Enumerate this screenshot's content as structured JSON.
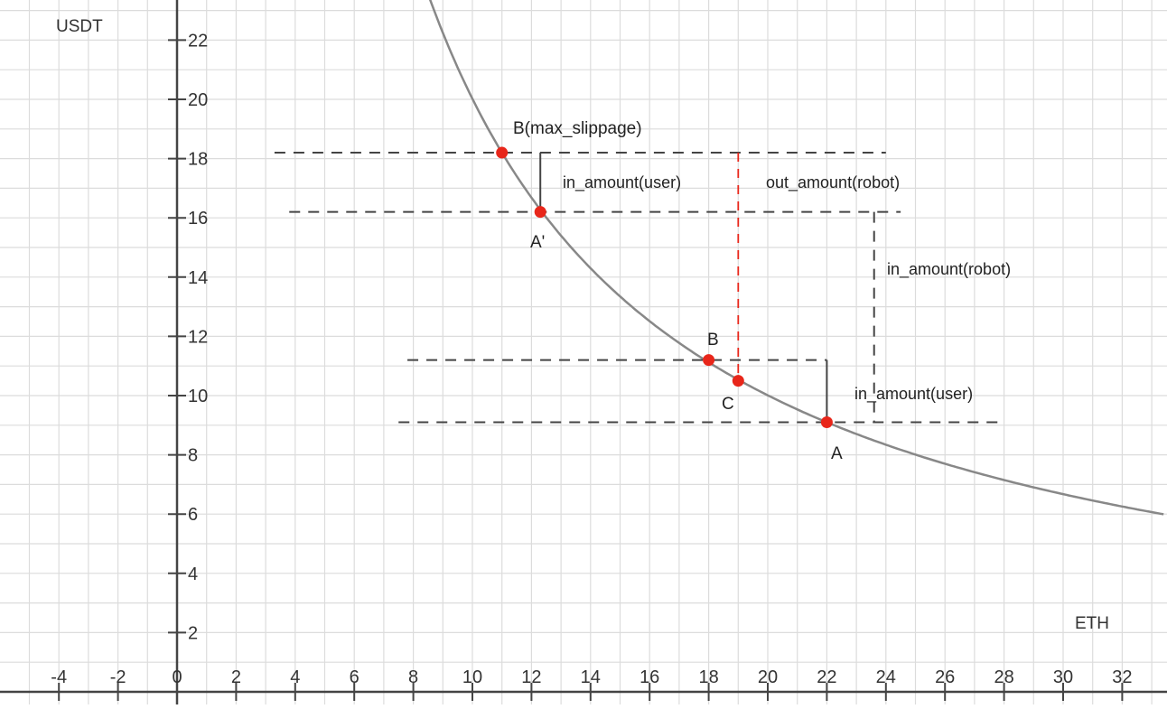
{
  "axes": {
    "x_title": "ETH",
    "y_title": "USDT",
    "x_ticks": [
      "-4",
      "-2",
      "0",
      "2",
      "4",
      "6",
      "8",
      "10",
      "12",
      "14",
      "16",
      "18",
      "20",
      "22",
      "24",
      "26",
      "28",
      "30",
      "32"
    ],
    "y_ticks": [
      "2",
      "4",
      "6",
      "8",
      "10",
      "12",
      "14",
      "16",
      "18",
      "20",
      "22"
    ]
  },
  "points": [
    {
      "id": "B_max",
      "label": "B(max_slippage)",
      "x": 11,
      "y": 18.2
    },
    {
      "id": "A_prime",
      "label": "A'",
      "x": 12.3,
      "y": 16.2
    },
    {
      "id": "B",
      "label": "B",
      "x": 18,
      "y": 11.2
    },
    {
      "id": "C",
      "label": "C",
      "x": 19,
      "y": 10.5
    },
    {
      "id": "A",
      "label": "A",
      "x": 22,
      "y": 9.1
    }
  ],
  "annotations": {
    "in_amount_user_top": "in_amount(user)",
    "out_amount_robot": "out_amount(robot)",
    "in_amount_robot": "in_amount(robot)",
    "in_amount_user_bottom": "in_amount(user)"
  },
  "colors": {
    "curve": "#888888",
    "point": "#e8261a",
    "dashed": "#444444",
    "red_dashed": "#e8261a",
    "grid": "#dcdcdc"
  }
}
